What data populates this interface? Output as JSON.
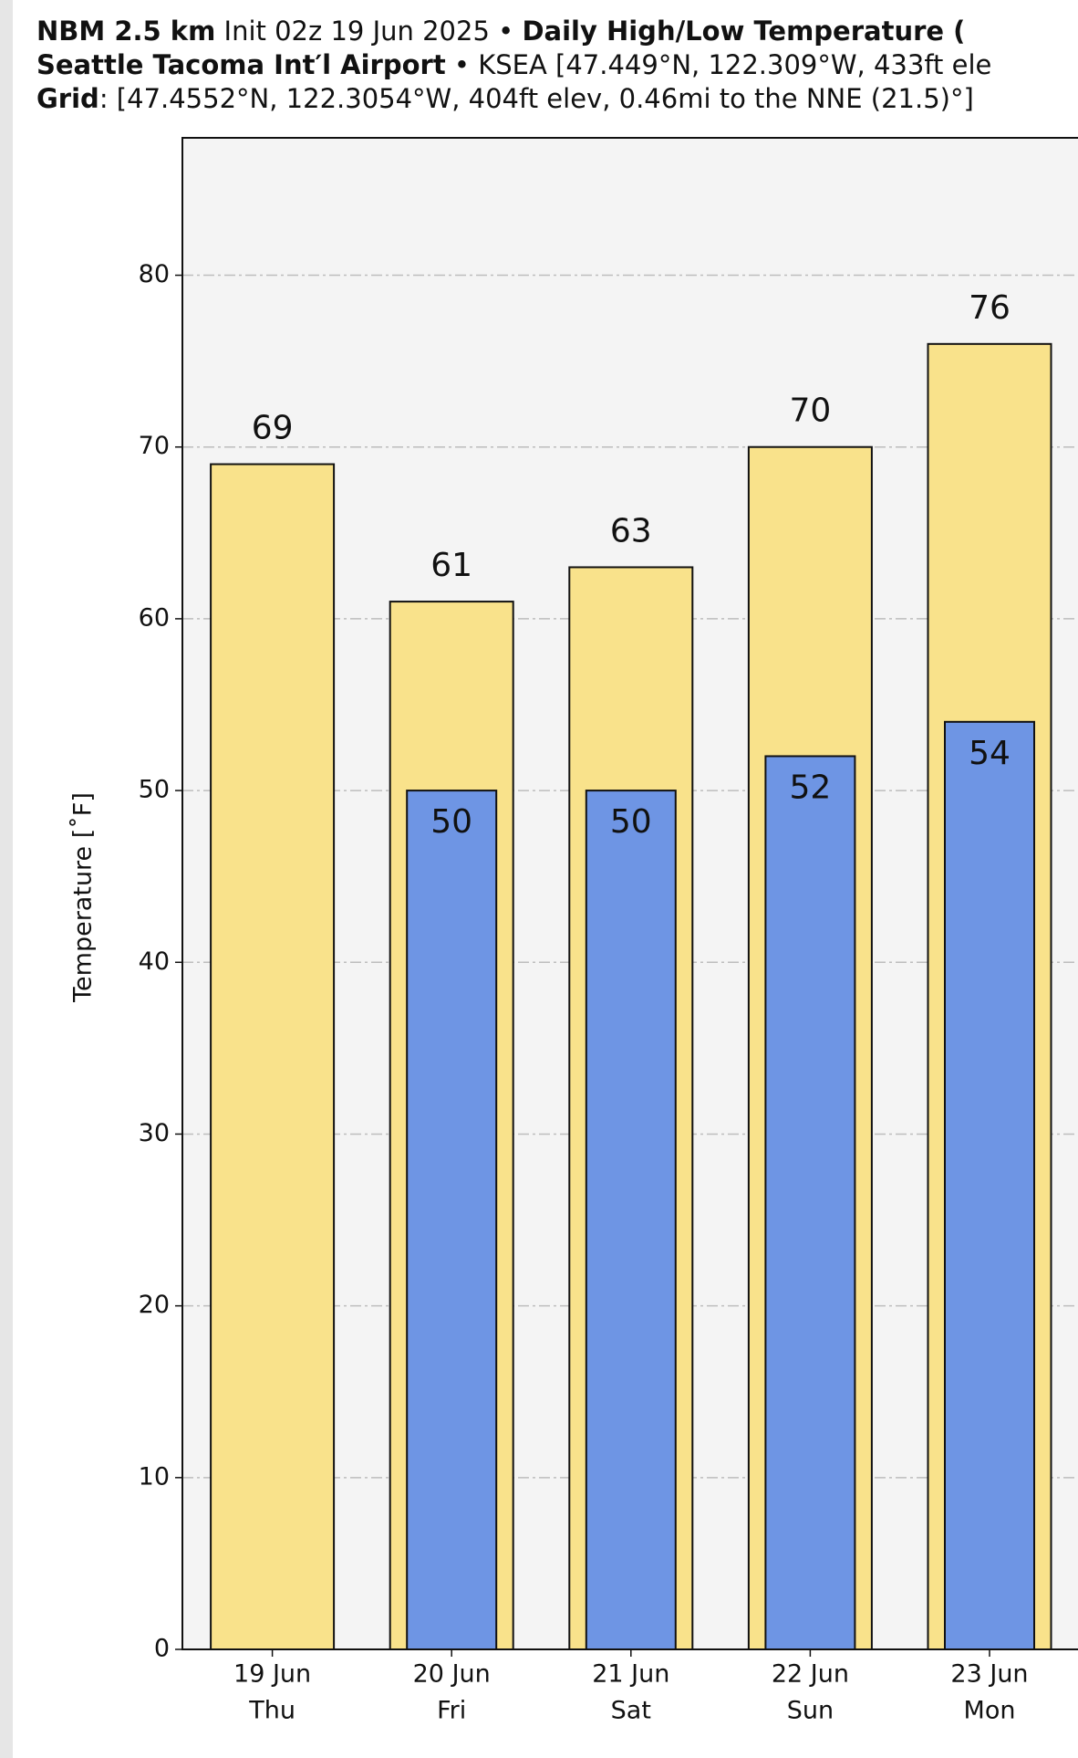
{
  "chart_data": {
    "type": "bar",
    "title": [
      [
        "NBM 2.5 km",
        " Init 02z 19 Jun 2025 • ",
        "Daily High/Low Temperature ("
      ],
      [
        "Seattle Tacoma Int′l Airport",
        " • KSEA [47.449°N, 122.309°W, 433ft ele"
      ],
      [
        "Grid",
        ": [47.4552°N, 122.3054°W, 404ft elev, 0.46mi to the NNE (21.5)°]"
      ]
    ],
    "ylabel": "Temperature [˚F]",
    "categories": [
      [
        "19 Jun",
        "Thu"
      ],
      [
        "20 Jun",
        "Fri"
      ],
      [
        "21 Jun",
        "Sat"
      ],
      [
        "22 Jun",
        "Sun"
      ],
      [
        "23 Jun",
        "Mon"
      ]
    ],
    "series": [
      {
        "color": "#f9e28b",
        "values": [
          69,
          61,
          63,
          70,
          76
        ]
      },
      {
        "color": "#6e95e4",
        "values": [
          null,
          50,
          50,
          52,
          54
        ]
      }
    ],
    "ylim": [
      0,
      88
    ],
    "yticks": [
      0,
      10,
      20,
      30,
      40,
      50,
      60,
      70,
      80
    ],
    "grid": true
  }
}
